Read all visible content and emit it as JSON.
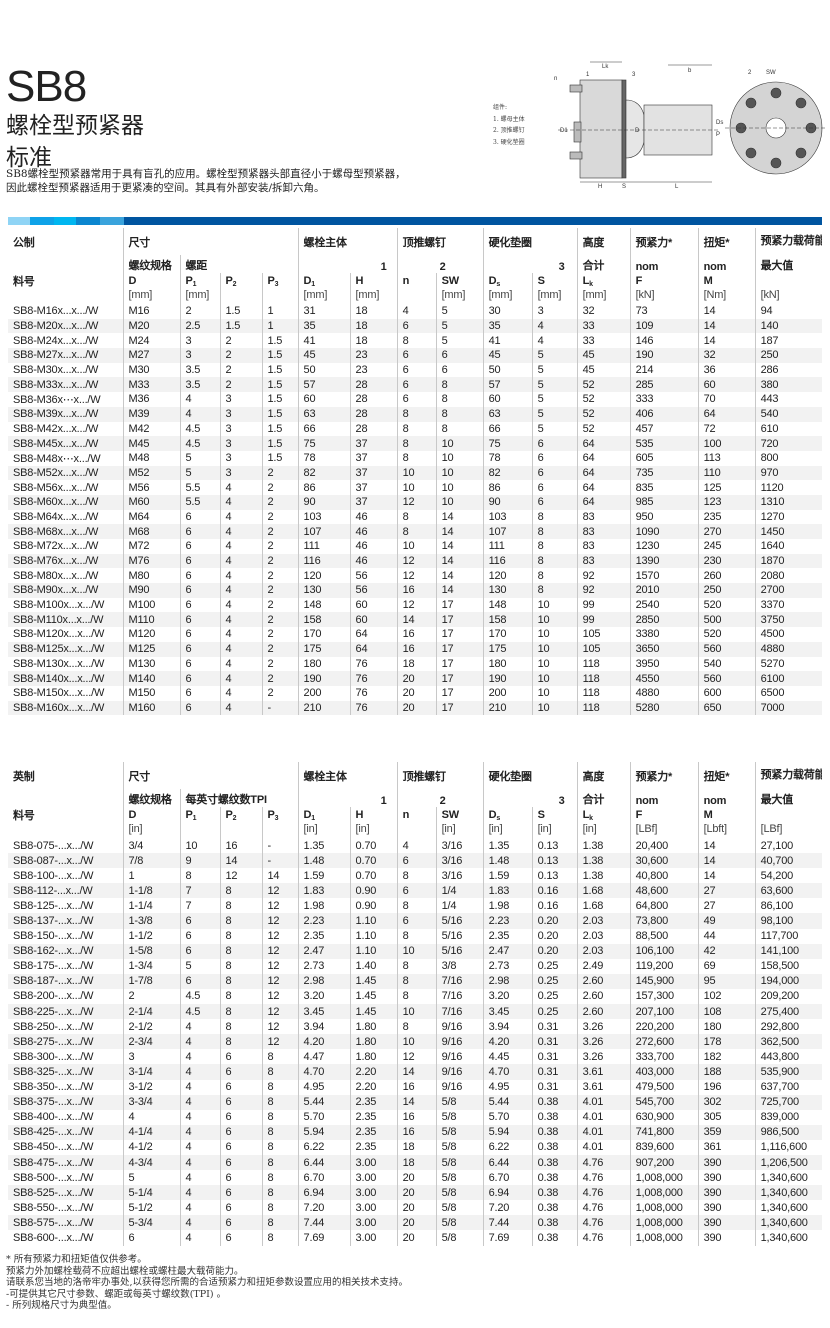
{
  "header": {
    "title": "SB8",
    "subtitle1": "螺栓型预紧器",
    "subtitle2": "标准",
    "description1": "SB8螺栓型预紧器常用于具有盲孔的应用。螺栓型预紧器头部直径小于螺母型预紧器，",
    "description2": "因此螺栓型预紧器适用于更紧凑的空间。其具有外部安装/拆卸六角。"
  },
  "diagram": {
    "legend_title": "组件:",
    "legend": [
      "1.  螺母主体",
      "2.  顶推螺钉",
      "3.  硬化垫圈"
    ],
    "labels": {
      "lk": "Lk",
      "b": "b",
      "n": "n",
      "one": "1",
      "three": "3",
      "two": "2",
      "sw": "SW",
      "h": "H",
      "s": "S",
      "l": "L",
      "d1": "D1",
      "d": "D",
      "ds": "Ds",
      "p": "P"
    }
  },
  "colors": {
    "brand_blue": "#0055a0",
    "bar_segments": [
      "#8fd4f5",
      "#0ea2e8",
      "#00b6f0",
      "#0b86cf",
      "#3aa3dc"
    ]
  },
  "metric": {
    "groups": [
      "公制",
      "尺寸",
      "螺栓主体",
      "顶推螺钉",
      "硬化垫圈",
      "高度",
      "预紧力*",
      "扭矩*",
      "预紧力载荷能力*"
    ],
    "sub": [
      "",
      "螺纹规格",
      "螺距",
      "1",
      "2",
      "3",
      "合计",
      "nom",
      "nom",
      "最大值"
    ],
    "part_label": "料号",
    "symbols": [
      [
        "D",
        ""
      ],
      [
        "P",
        "1"
      ],
      [
        "P",
        "2"
      ],
      [
        "P",
        "3"
      ],
      [
        "D",
        "1"
      ],
      [
        "H",
        ""
      ],
      [
        "n",
        ""
      ],
      [
        "SW",
        ""
      ],
      [
        "D",
        "s"
      ],
      [
        "S",
        ""
      ],
      [
        "L",
        "k"
      ],
      [
        "F",
        ""
      ],
      [
        "M",
        ""
      ],
      [
        "",
        ""
      ]
    ],
    "units": [
      "[mm]",
      "[mm]",
      "",
      "",
      "[mm]",
      "[mm]",
      "",
      "[mm]",
      "[mm]",
      "[mm]",
      "[mm]",
      "[kN]",
      "[Nm]",
      "[kN]"
    ],
    "rows": [
      [
        "SB8-M16x...x.../W",
        "M16",
        "2",
        "1.5",
        "1",
        "31",
        "18",
        "4",
        "5",
        "30",
        "3",
        "32",
        "73",
        "14",
        "94"
      ],
      [
        "SB8-M20x...x.../W",
        "M20",
        "2.5",
        "1.5",
        "1",
        "35",
        "18",
        "6",
        "5",
        "35",
        "4",
        "33",
        "109",
        "14",
        "140"
      ],
      [
        "SB8-M24x...x.../W",
        "M24",
        "3",
        "2",
        "1.5",
        "41",
        "18",
        "8",
        "5",
        "41",
        "4",
        "33",
        "146",
        "14",
        "187"
      ],
      [
        "SB8-M27x...x.../W",
        "M27",
        "3",
        "2",
        "1.5",
        "45",
        "23",
        "6",
        "6",
        "45",
        "5",
        "45",
        "190",
        "32",
        "250"
      ],
      [
        "SB8-M30x...x.../W",
        "M30",
        "3.5",
        "2",
        "1.5",
        "50",
        "23",
        "6",
        "6",
        "50",
        "5",
        "45",
        "214",
        "36",
        "286"
      ],
      [
        "SB8-M33x...x.../W",
        "M33",
        "3.5",
        "2",
        "1.5",
        "57",
        "28",
        "6",
        "8",
        "57",
        "5",
        "52",
        "285",
        "60",
        "380"
      ],
      [
        "SB8-M36x⋯x.../W",
        "M36",
        "4",
        "3",
        "1.5",
        "60",
        "28",
        "6",
        "8",
        "60",
        "5",
        "52",
        "333",
        "70",
        "443"
      ],
      [
        "SB8-M39x...x.../W",
        "M39",
        "4",
        "3",
        "1.5",
        "63",
        "28",
        "8",
        "8",
        "63",
        "5",
        "52",
        "406",
        "64",
        "540"
      ],
      [
        "SB8-M42x...x.../W",
        "M42",
        "4.5",
        "3",
        "1.5",
        "66",
        "28",
        "8",
        "8",
        "66",
        "5",
        "52",
        "457",
        "72",
        "610"
      ],
      [
        "SB8-M45x...x.../W",
        "M45",
        "4.5",
        "3",
        "1.5",
        "75",
        "37",
        "8",
        "10",
        "75",
        "6",
        "64",
        "535",
        "100",
        "720"
      ],
      [
        "SB8-M48x⋯x.../W",
        "M48",
        "5",
        "3",
        "1.5",
        "78",
        "37",
        "8",
        "10",
        "78",
        "6",
        "64",
        "605",
        "113",
        "800"
      ],
      [
        "SB8-M52x...x.../W",
        "M52",
        "5",
        "3",
        "2",
        "82",
        "37",
        "10",
        "10",
        "82",
        "6",
        "64",
        "735",
        "110",
        "970"
      ],
      [
        "SB8-M56x...x.../W",
        "M56",
        "5.5",
        "4",
        "2",
        "86",
        "37",
        "10",
        "10",
        "86",
        "6",
        "64",
        "835",
        "125",
        "1120"
      ],
      [
        "SB8-M60x...x.../W",
        "M60",
        "5.5",
        "4",
        "2",
        "90",
        "37",
        "12",
        "10",
        "90",
        "6",
        "64",
        "985",
        "123",
        "1310"
      ],
      [
        "SB8-M64x...x.../W",
        "M64",
        "6",
        "4",
        "2",
        "103",
        "46",
        "8",
        "14",
        "103",
        "8",
        "83",
        "950",
        "235",
        "1270"
      ],
      [
        "SB8-M68x...x.../W",
        "M68",
        "6",
        "4",
        "2",
        "107",
        "46",
        "8",
        "14",
        "107",
        "8",
        "83",
        "1090",
        "270",
        "1450"
      ],
      [
        "SB8-M72x...x.../W",
        "M72",
        "6",
        "4",
        "2",
        "111",
        "46",
        "10",
        "14",
        "111",
        "8",
        "83",
        "1230",
        "245",
        "1640"
      ],
      [
        "SB8-M76x...x.../W",
        "M76",
        "6",
        "4",
        "2",
        "116",
        "46",
        "12",
        "14",
        "116",
        "8",
        "83",
        "1390",
        "230",
        "1870"
      ],
      [
        "SB8-M80x...x.../W",
        "M80",
        "6",
        "4",
        "2",
        "120",
        "56",
        "12",
        "14",
        "120",
        "8",
        "92",
        "1570",
        "260",
        "2080"
      ],
      [
        "SB8-M90x...x.../W",
        "M90",
        "6",
        "4",
        "2",
        "130",
        "56",
        "16",
        "14",
        "130",
        "8",
        "92",
        "2010",
        "250",
        "2700"
      ],
      [
        "SB8-M100x...x.../W",
        "M100",
        "6",
        "4",
        "2",
        "148",
        "60",
        "12",
        "17",
        "148",
        "10",
        "99",
        "2540",
        "520",
        "3370"
      ],
      [
        "SB8-M110x...x.../W",
        "M110",
        "6",
        "4",
        "2",
        "158",
        "60",
        "14",
        "17",
        "158",
        "10",
        "99",
        "2850",
        "500",
        "3750"
      ],
      [
        "SB8-M120x...x.../W",
        "M120",
        "6",
        "4",
        "2",
        "170",
        "64",
        "16",
        "17",
        "170",
        "10",
        "105",
        "3380",
        "520",
        "4500"
      ],
      [
        "SB8-M125x...x.../W",
        "M125",
        "6",
        "4",
        "2",
        "175",
        "64",
        "16",
        "17",
        "175",
        "10",
        "105",
        "3650",
        "560",
        "4880"
      ],
      [
        "SB8-M130x...x.../W",
        "M130",
        "6",
        "4",
        "2",
        "180",
        "76",
        "18",
        "17",
        "180",
        "10",
        "118",
        "3950",
        "540",
        "5270"
      ],
      [
        "SB8-M140x...x.../W",
        "M140",
        "6",
        "4",
        "2",
        "190",
        "76",
        "20",
        "17",
        "190",
        "10",
        "118",
        "4550",
        "560",
        "6100"
      ],
      [
        "SB8-M150x...x.../W",
        "M150",
        "6",
        "4",
        "2",
        "200",
        "76",
        "20",
        "17",
        "200",
        "10",
        "118",
        "4880",
        "600",
        "6500"
      ],
      [
        "SB8-M160x...x.../W",
        "M160",
        "6",
        "4",
        "-",
        "210",
        "76",
        "20",
        "17",
        "210",
        "10",
        "118",
        "5280",
        "650",
        "7000"
      ]
    ]
  },
  "imperial": {
    "groups": [
      "英制",
      "尺寸",
      "螺栓主体",
      "顶推螺钉",
      "硬化垫圈",
      "高度",
      "预紧力*",
      "扭矩*",
      "预紧力载荷能力*"
    ],
    "sub": [
      "",
      "螺纹规格",
      "每英寸螺纹数TPI",
      "1",
      "2",
      "3",
      "合计",
      "nom",
      "nom",
      "最大值"
    ],
    "part_label": "料号",
    "symbols": [
      [
        "D",
        ""
      ],
      [
        "P",
        "1"
      ],
      [
        "P",
        "2"
      ],
      [
        "P",
        "3"
      ],
      [
        "D",
        "1"
      ],
      [
        "H",
        ""
      ],
      [
        "n",
        ""
      ],
      [
        "SW",
        ""
      ],
      [
        "D",
        "s"
      ],
      [
        "S",
        ""
      ],
      [
        "L",
        "k"
      ],
      [
        "F",
        ""
      ],
      [
        "M",
        ""
      ],
      [
        "",
        ""
      ]
    ],
    "units": [
      "[in]",
      "",
      "",
      "",
      "[in]",
      "[in]",
      "",
      "[in]",
      "[in]",
      "[in]",
      "[in]",
      "[LBf]",
      "[Lbft]",
      "[LBf]"
    ],
    "rows": [
      [
        "SB8-075-...x.../W",
        "3/4",
        "10",
        "16",
        "-",
        "1.35",
        "0.70",
        "4",
        "3/16",
        "1.35",
        "0.13",
        "1.38",
        "20,400",
        "14",
        "27,100"
      ],
      [
        "SB8-087-...x.../W",
        "7/8",
        "9",
        "14",
        "-",
        "1.48",
        "0.70",
        "6",
        "3/16",
        "1.48",
        "0.13",
        "1.38",
        "30,600",
        "14",
        "40,700"
      ],
      [
        "SB8-100-...x.../W",
        "1",
        "8",
        "12",
        "14",
        "1.59",
        "0.70",
        "8",
        "3/16",
        "1.59",
        "0.13",
        "1.38",
        "40,800",
        "14",
        "54,200"
      ],
      [
        "SB8-112-...x.../W",
        "1-1/8",
        "7",
        "8",
        "12",
        "1.83",
        "0.90",
        "6",
        "1/4",
        "1.83",
        "0.16",
        "1.68",
        "48,600",
        "27",
        "63,600"
      ],
      [
        "SB8-125-...x.../W",
        "1-1/4",
        "7",
        "8",
        "12",
        "1.98",
        "0.90",
        "8",
        "1/4",
        "1.98",
        "0.16",
        "1.68",
        "64,800",
        "27",
        "86,100"
      ],
      [
        "SB8-137-...x.../W",
        "1-3/8",
        "6",
        "8",
        "12",
        "2.23",
        "1.10",
        "6",
        "5/16",
        "2.23",
        "0.20",
        "2.03",
        "73,800",
        "49",
        "98,100"
      ],
      [
        "SB8-150-...x.../W",
        "1-1/2",
        "6",
        "8",
        "12",
        "2.35",
        "1.10",
        "8",
        "5/16",
        "2.35",
        "0.20",
        "2.03",
        "88,500",
        "44",
        "117,700"
      ],
      [
        "SB8-162-...x.../W",
        "1-5/8",
        "6",
        "8",
        "12",
        "2.47",
        "1.10",
        "10",
        "5/16",
        "2.47",
        "0.20",
        "2.03",
        "106,100",
        "42",
        "141,100"
      ],
      [
        "SB8-175-...x.../W",
        "1-3/4",
        "5",
        "8",
        "12",
        "2.73",
        "1.40",
        "8",
        "3/8",
        "2.73",
        "0.25",
        "2.49",
        "119,200",
        "69",
        "158,500"
      ],
      [
        "SB8-187-...x.../W",
        "1-7/8",
        "6",
        "8",
        "12",
        "2.98",
        "1.45",
        "8",
        "7/16",
        "2.98",
        "0.25",
        "2.60",
        "145,900",
        "95",
        "194,000"
      ],
      [
        "SB8-200-...x.../W",
        "2",
        "4.5",
        "8",
        "12",
        "3.20",
        "1.45",
        "8",
        "7/16",
        "3.20",
        "0.25",
        "2.60",
        "157,300",
        "102",
        "209,200"
      ],
      [
        "SB8-225-...x.../W",
        "2-1/4",
        "4.5",
        "8",
        "12",
        "3.45",
        "1.45",
        "10",
        "7/16",
        "3.45",
        "0.25",
        "2.60",
        "207,100",
        "108",
        "275,400"
      ],
      [
        "SB8-250-...x.../W",
        "2-1/2",
        "4",
        "8",
        "12",
        "3.94",
        "1.80",
        "8",
        "9/16",
        "3.94",
        "0.31",
        "3.26",
        "220,200",
        "180",
        "292,800"
      ],
      [
        "SB8-275-...x.../W",
        "2-3/4",
        "4",
        "8",
        "12",
        "4.20",
        "1.80",
        "10",
        "9/16",
        "4.20",
        "0.31",
        "3.26",
        "272,600",
        "178",
        "362,500"
      ],
      [
        "SB8-300-...x.../W",
        "3",
        "4",
        "6",
        "8",
        "4.47",
        "1.80",
        "12",
        "9/16",
        "4.45",
        "0.31",
        "3.26",
        "333,700",
        "182",
        "443,800"
      ],
      [
        "SB8-325-...x.../W",
        "3-1/4",
        "4",
        "6",
        "8",
        "4.70",
        "2.20",
        "14",
        "9/16",
        "4.70",
        "0.31",
        "3.61",
        "403,000",
        "188",
        "535,900"
      ],
      [
        "SB8-350-...x.../W",
        "3-1/2",
        "4",
        "6",
        "8",
        "4.95",
        "2.20",
        "16",
        "9/16",
        "4.95",
        "0.31",
        "3.61",
        "479,500",
        "196",
        "637,700"
      ],
      [
        "SB8-375-...x.../W",
        "3-3/4",
        "4",
        "6",
        "8",
        "5.44",
        "2.35",
        "14",
        "5/8",
        "5.44",
        "0.38",
        "4.01",
        "545,700",
        "302",
        "725,700"
      ],
      [
        "SB8-400-...x.../W",
        "4",
        "4",
        "6",
        "8",
        "5.70",
        "2.35",
        "16",
        "5/8",
        "5.70",
        "0.38",
        "4.01",
        "630,900",
        "305",
        "839,000"
      ],
      [
        "SB8-425-...x.../W",
        "4-1/4",
        "4",
        "6",
        "8",
        "5.94",
        "2.35",
        "16",
        "5/8",
        "5.94",
        "0.38",
        "4.01",
        "741,800",
        "359",
        "986,500"
      ],
      [
        "SB8-450-...x.../W",
        "4-1/2",
        "4",
        "6",
        "8",
        "6.22",
        "2.35",
        "18",
        "5/8",
        "6.22",
        "0.38",
        "4.01",
        "839,600",
        "361",
        "1,116,600"
      ],
      [
        "SB8-475-...x.../W",
        "4-3/4",
        "4",
        "6",
        "8",
        "6.44",
        "3.00",
        "18",
        "5/8",
        "6.44",
        "0.38",
        "4.76",
        "907,200",
        "390",
        "1,206,500"
      ],
      [
        "SB8-500-...x.../W",
        "5",
        "4",
        "6",
        "8",
        "6.70",
        "3.00",
        "20",
        "5/8",
        "6.70",
        "0.38",
        "4.76",
        "1,008,000",
        "390",
        "1,340,600"
      ],
      [
        "SB8-525-...x.../W",
        "5-1/4",
        "4",
        "6",
        "8",
        "6.94",
        "3.00",
        "20",
        "5/8",
        "6.94",
        "0.38",
        "4.76",
        "1,008,000",
        "390",
        "1,340,600"
      ],
      [
        "SB8-550-...x.../W",
        "5-1/2",
        "4",
        "6",
        "8",
        "7.20",
        "3.00",
        "20",
        "5/8",
        "7.20",
        "0.38",
        "4.76",
        "1,008,000",
        "390",
        "1,340,600"
      ],
      [
        "SB8-575-...x.../W",
        "5-3/4",
        "4",
        "6",
        "8",
        "7.44",
        "3.00",
        "20",
        "5/8",
        "7.44",
        "0.38",
        "4.76",
        "1,008,000",
        "390",
        "1,340,600"
      ],
      [
        "SB8-600-...x.../W",
        "6",
        "4",
        "6",
        "8",
        "7.69",
        "3.00",
        "20",
        "5/8",
        "7.69",
        "0.38",
        "4.76",
        "1,008,000",
        "390",
        "1,340,600"
      ]
    ]
  },
  "notes": [
    "* 所有预紧力和扭矩值仅供参考。",
    " 预紧力外加螺栓载荷不应超出螺栓或螺柱最大载荷能力。",
    " 请联系您当地的洛帝牢办事处,以获得您所需的合适预紧力和扭矩参数设置应用的相关技术支持。",
    "-可提供其它尺寸参数、螺距或每英寸螺纹数(TPI) 。",
    "- 所列规格尺寸为典型值。"
  ]
}
